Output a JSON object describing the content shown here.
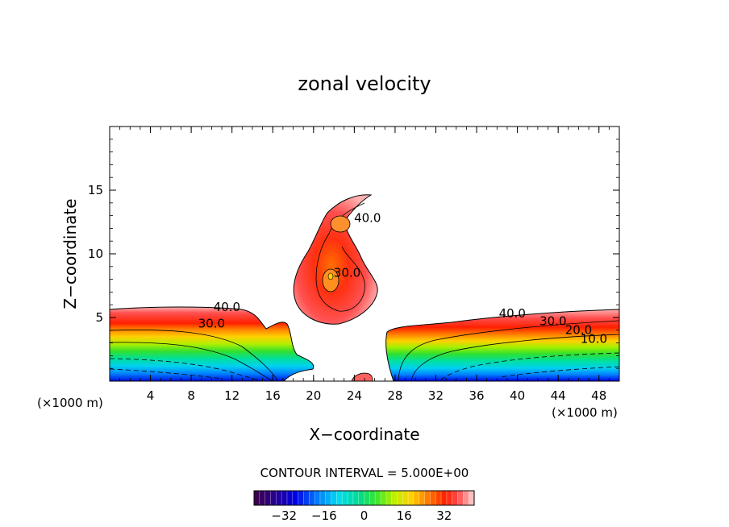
{
  "chart_data": {
    "type": "contour",
    "title": "zonal velocity",
    "xlabel": "X−coordinate",
    "ylabel": "Z−coordinate",
    "x_unit_label": "(×1000 m)",
    "z_unit_label": "(×1000 m)",
    "xlim": [
      0,
      50
    ],
    "ylim": [
      0,
      20
    ],
    "x_ticks": [
      "4",
      "8",
      "12",
      "16",
      "20",
      "24",
      "28",
      "32",
      "36",
      "40",
      "44",
      "48"
    ],
    "y_ticks": [
      "5",
      "10",
      "15"
    ],
    "contour_interval_text": "CONTOUR INTERVAL = 5.000E+00",
    "contour_interval": 5.0,
    "contour_labels": [
      {
        "text": "40.0",
        "x": 11.5,
        "z": 5.5
      },
      {
        "text": "30.0",
        "x": 10.0,
        "z": 4.2
      },
      {
        "text": "40.0",
        "x": 25.3,
        "z": 12.5
      },
      {
        "text": "30.0",
        "x": 23.3,
        "z": 8.2
      },
      {
        "text": "40.0",
        "x": 39.5,
        "z": 5.0
      },
      {
        "text": "30.0",
        "x": 43.5,
        "z": 4.4
      },
      {
        "text": "20.0",
        "x": 46.0,
        "z": 3.7
      },
      {
        "text": "10.0",
        "x": 47.5,
        "z": 3.0
      }
    ],
    "colorbar": {
      "ticks": [
        "−32",
        "−16",
        "0",
        "16",
        "32"
      ],
      "tick_values": [
        -32,
        -16,
        0,
        16,
        32
      ],
      "range": [
        -44,
        44
      ]
    }
  }
}
